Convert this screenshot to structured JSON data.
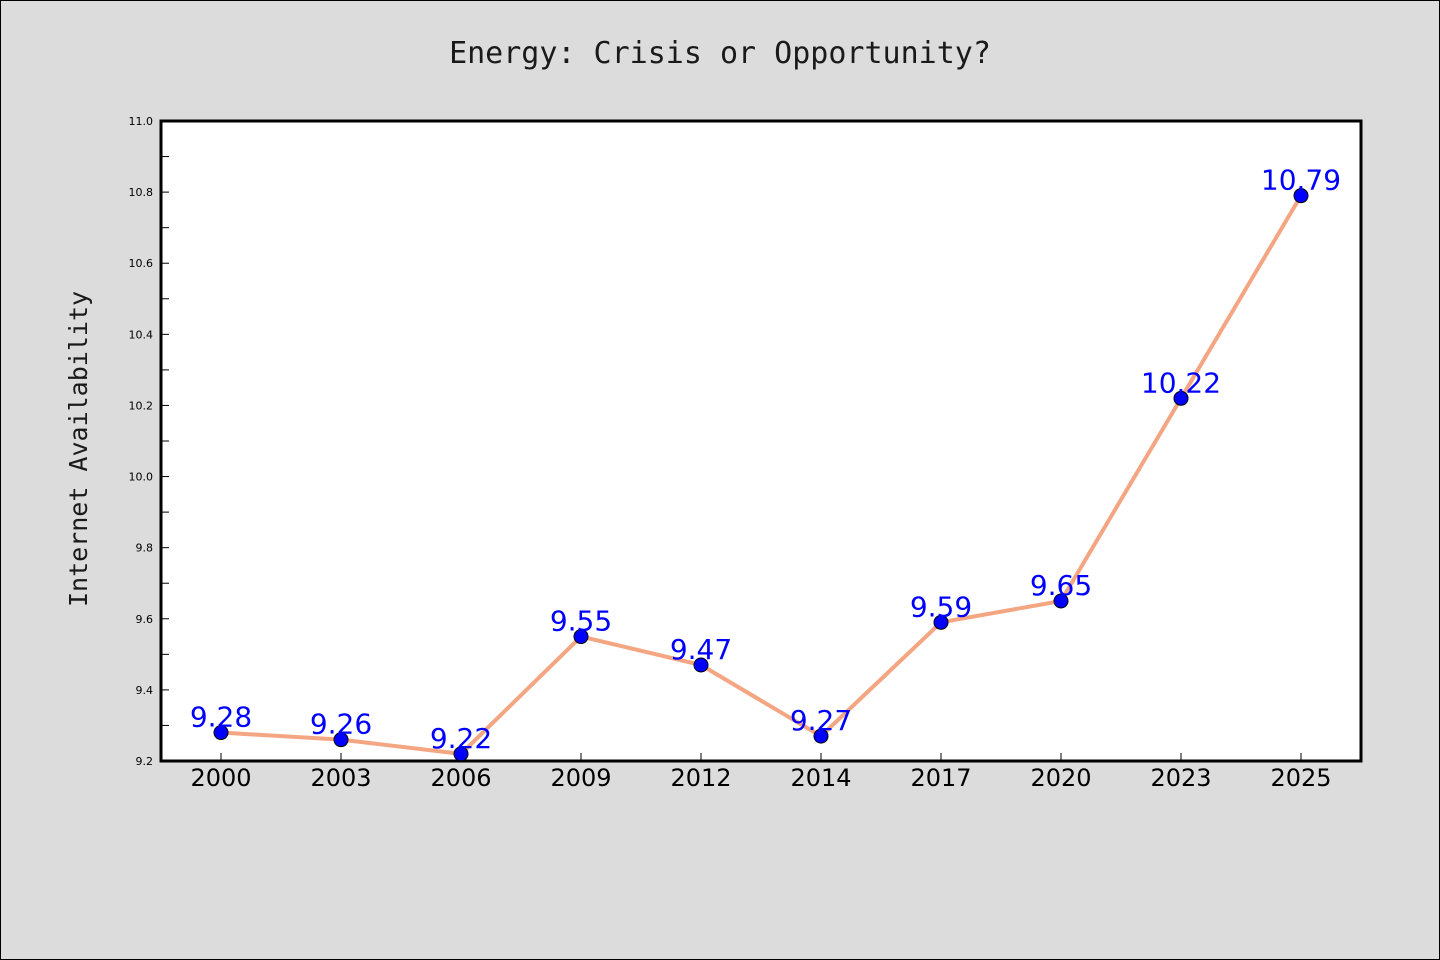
{
  "chart_data": {
    "type": "line",
    "title": "Energy: Crisis or Opportunity?",
    "xlabel": "",
    "ylabel": "Internet Availability",
    "categories": [
      "2000",
      "2003",
      "2006",
      "2009",
      "2012",
      "2014",
      "2017",
      "2020",
      "2023",
      "2025"
    ],
    "series": [
      {
        "values": [
          9.28,
          9.26,
          9.22,
          9.55,
          9.47,
          9.27,
          9.59,
          9.65,
          10.22,
          10.79
        ],
        "line_color": "#f4a582",
        "marker_color": "#0000ff",
        "label_color": "#0000ff"
      }
    ],
    "data_labels": [
      "9.28",
      "9.26",
      "9.22",
      "9.55",
      "9.47",
      "9.27",
      "9.59",
      "9.65",
      "10.22",
      "10.79"
    ],
    "ylim": [
      9.2,
      11.0
    ],
    "yticks": [
      "9.2",
      "9.4",
      "9.6",
      "9.8",
      "10.0",
      "10.2",
      "10.4",
      "10.6",
      "10.8",
      "11.0"
    ],
    "grid": false,
    "legend": "none",
    "background_color": "#dcdcdc",
    "plot_background_color": "#ffffff"
  }
}
